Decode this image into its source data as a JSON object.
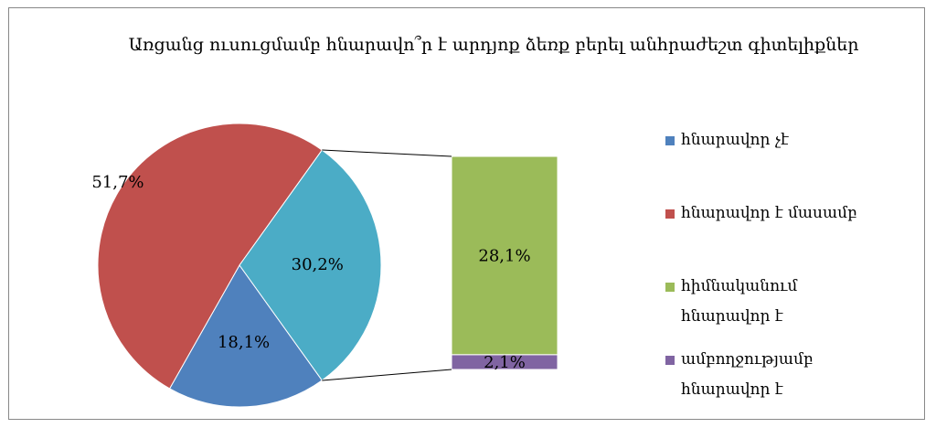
{
  "chart_data": {
    "type": "pie-of-bar",
    "title": "Առցանց ուսուցմամբ հնարավո՞ր է արդյոք ձեռք բերել անհրաժեշտ գիտելիքներ",
    "categories": [
      "հնարավոր չէ",
      "հնարավոր է մասամբ",
      "հիմնականում հնարավոր է",
      "ամբողջությամբ հնարավոր է"
    ],
    "values": [
      18.1,
      51.7,
      28.1,
      2.1
    ],
    "value_labels": [
      "18,1%",
      "51,7%",
      "28,1%",
      "2,1%"
    ],
    "colors": [
      "#4f81bd",
      "#c0504d",
      "#9bbb59",
      "#8064a2"
    ],
    "other_value": 30.2,
    "other_label": "30,2%",
    "other_color": "#4bacc6",
    "legend": "right"
  }
}
